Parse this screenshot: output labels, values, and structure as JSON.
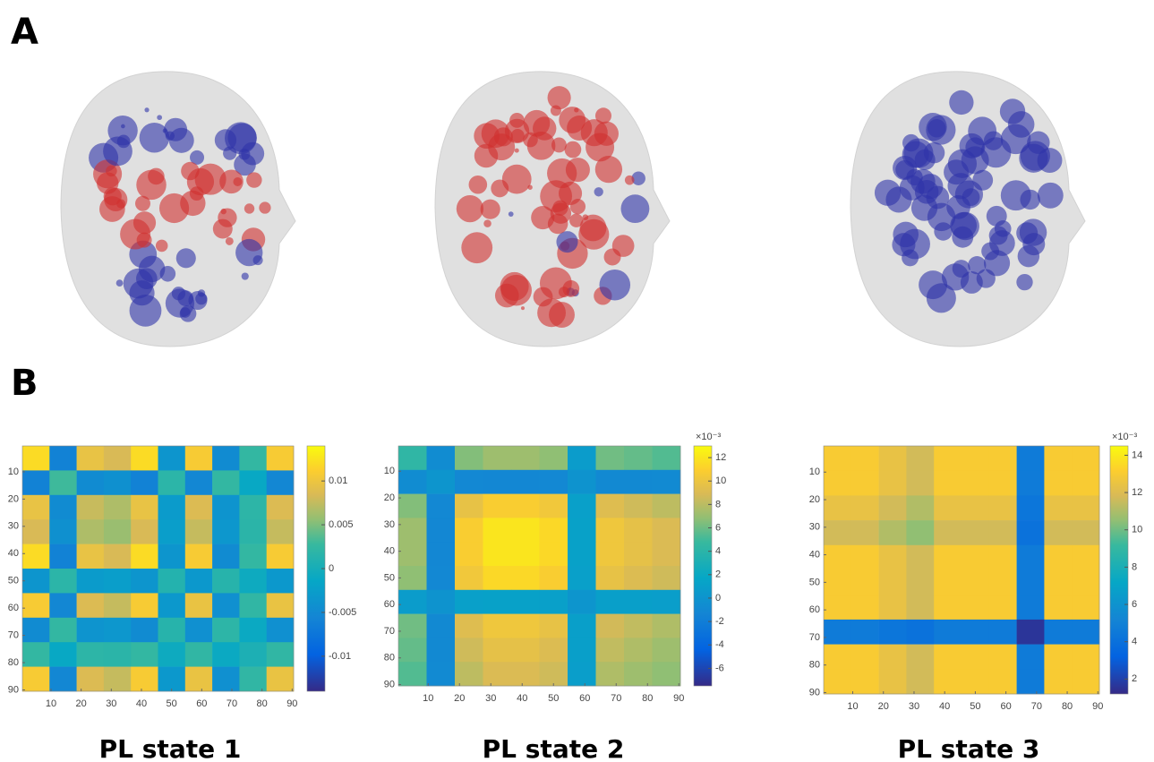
{
  "panel_labels": [
    "A",
    "B"
  ],
  "chart_data": [
    {
      "type": "heatmap",
      "title": "PL state 1",
      "xbins": [
        0.5,
        9.5,
        18.5,
        27.5,
        36.5,
        45.5,
        54.5,
        63.5,
        72.5,
        81.5,
        90.5
      ],
      "ybins": [
        0.5,
        9.5,
        18.5,
        27.5,
        36.5,
        45.5,
        54.5,
        63.5,
        72.5,
        81.5,
        90.5
      ],
      "z": [
        [
          0.012,
          -0.006,
          0.0096,
          0.0084,
          0.012,
          -0.0036,
          0.0108,
          -0.0048,
          0.0024,
          0.0108
        ],
        [
          -0.006,
          0.003,
          -0.0048,
          -0.0042,
          -0.006,
          0.0018,
          -0.0054,
          0.0024,
          -0.0012,
          -0.0054
        ],
        [
          0.0096,
          -0.0048,
          0.0077,
          0.0067,
          0.0096,
          -0.0029,
          0.0086,
          -0.0038,
          0.0019,
          0.0086
        ],
        [
          0.0084,
          -0.0042,
          0.0067,
          0.0059,
          0.0084,
          -0.0025,
          0.0076,
          -0.0034,
          0.0017,
          0.0076
        ],
        [
          0.012,
          -0.006,
          0.0096,
          0.0084,
          0.012,
          -0.0036,
          0.0108,
          -0.0048,
          0.0024,
          0.0108
        ],
        [
          -0.0036,
          0.0018,
          -0.0029,
          -0.0025,
          -0.0036,
          0.0011,
          -0.0032,
          0.0014,
          -0.0007,
          -0.0032
        ],
        [
          0.0108,
          -0.0054,
          0.0086,
          0.0076,
          0.0108,
          -0.0032,
          0.0097,
          -0.0043,
          0.0022,
          0.0097
        ],
        [
          -0.0048,
          0.0024,
          -0.0038,
          -0.0034,
          -0.0048,
          0.0014,
          -0.0043,
          0.0019,
          -0.001,
          -0.0043
        ],
        [
          0.0024,
          -0.0012,
          0.0019,
          0.0017,
          0.0024,
          -0.0007,
          0.0022,
          -0.001,
          0.0005,
          0.0022
        ],
        [
          0.0108,
          -0.0054,
          0.0086,
          0.0076,
          0.0108,
          -0.0032,
          0.0097,
          -0.0043,
          0.0022,
          0.0097
        ]
      ],
      "xlim": [
        0.5,
        90.5
      ],
      "ylim": [
        0.5,
        90.5
      ],
      "xticks": [
        10,
        20,
        30,
        40,
        50,
        60,
        70,
        80,
        90
      ],
      "yticks": [
        10,
        20,
        30,
        40,
        50,
        60,
        70,
        80,
        90
      ],
      "clim": [
        -0.014,
        0.014
      ],
      "cticks": [
        -0.01,
        -0.005,
        0,
        0.005,
        0.01
      ]
    },
    {
      "type": "heatmap",
      "title": "PL state 2",
      "xbins": [
        0.5,
        9.5,
        18.5,
        27.5,
        36.5,
        45.5,
        54.5,
        63.5,
        72.5,
        81.5,
        90.5
      ],
      "ybins": [
        0.5,
        9.5,
        18.5,
        27.5,
        36.5,
        45.5,
        54.5,
        63.5,
        72.5,
        81.5,
        90.5
      ],
      "z": [
        [
          4.3,
          -0.7,
          6.5,
          7.2,
          7.2,
          6.8,
          0.7,
          6.1,
          5.8,
          5.4
        ],
        [
          -0.7,
          0.1,
          -1.1,
          -1.2,
          -1.2,
          -1.1,
          -0.1,
          -1.0,
          -1.0,
          -0.9
        ],
        [
          6.5,
          -1.1,
          9.7,
          10.8,
          10.8,
          10.3,
          1.1,
          9.2,
          8.6,
          8.1
        ],
        [
          7.2,
          -1.2,
          10.8,
          12,
          12,
          11.4,
          1.2,
          10.2,
          9.6,
          9
        ],
        [
          7.2,
          -1.2,
          10.8,
          12,
          12,
          11.4,
          1.2,
          10.2,
          9.6,
          9
        ],
        [
          6.8,
          -1.1,
          10.3,
          11.4,
          11.4,
          10.8,
          1.1,
          9.7,
          9.1,
          8.6
        ],
        [
          0.7,
          -0.1,
          1.1,
          1.2,
          1.2,
          1.1,
          0.1,
          1.0,
          1.0,
          0.9
        ],
        [
          6.1,
          -1.0,
          9.2,
          10.2,
          10.2,
          9.7,
          1.0,
          8.7,
          8.2,
          7.7
        ],
        [
          5.8,
          -1.0,
          8.6,
          9.6,
          9.6,
          9.1,
          1.0,
          8.2,
          7.7,
          7.2
        ],
        [
          5.4,
          -0.9,
          8.1,
          9,
          9,
          8.6,
          0.9,
          7.7,
          7.2,
          6.8
        ]
      ],
      "xlim": [
        0.5,
        90.5
      ],
      "ylim": [
        0.5,
        90.5
      ],
      "xticks": [
        10,
        20,
        30,
        40,
        50,
        60,
        70,
        80,
        90
      ],
      "yticks": [
        10,
        20,
        30,
        40,
        50,
        60,
        70,
        80,
        90
      ],
      "clim": [
        -7.5,
        13
      ],
      "cticks": [
        -6,
        -4,
        -2,
        0,
        2,
        4,
        6,
        8,
        10,
        12
      ],
      "colorbar_scale": "×10⁻³"
    },
    {
      "type": "heatmap",
      "title": "PL state 3",
      "xbins": [
        0.5,
        9.5,
        18.5,
        27.5,
        36.5,
        45.5,
        54.5,
        63.5,
        72.5,
        81.5,
        90.5
      ],
      "ybins": [
        0.5,
        9.5,
        18.5,
        27.5,
        36.5,
        45.5,
        54.5,
        63.5,
        72.5,
        81.5,
        90.5
      ],
      "z": [
        [
          13,
          13,
          12.4,
          11.7,
          13,
          13,
          13,
          4.6,
          13,
          13
        ],
        [
          13,
          13,
          12.4,
          11.7,
          13,
          13,
          13,
          4.6,
          13,
          13
        ],
        [
          12.4,
          12.4,
          11.7,
          11.1,
          12.4,
          12.4,
          12.4,
          4.3,
          12.4,
          12.4
        ],
        [
          11.7,
          11.7,
          11.1,
          10.5,
          11.7,
          11.7,
          11.7,
          4.1,
          11.7,
          11.7
        ],
        [
          13,
          13,
          12.4,
          11.7,
          13,
          13,
          13,
          4.6,
          13,
          13
        ],
        [
          13,
          13,
          12.4,
          11.7,
          13,
          13,
          13,
          4.6,
          13,
          13
        ],
        [
          13,
          13,
          12.4,
          11.7,
          13,
          13,
          13,
          4.6,
          13,
          13
        ],
        [
          4.6,
          4.6,
          4.3,
          4.1,
          4.6,
          4.6,
          4.6,
          1.6,
          4.6,
          4.6
        ],
        [
          13,
          13,
          12.4,
          11.7,
          13,
          13,
          13,
          4.6,
          13,
          13
        ],
        [
          13,
          13,
          12.4,
          11.7,
          13,
          13,
          13,
          4.6,
          13,
          13
        ]
      ],
      "xlim": [
        0.5,
        90.5
      ],
      "ylim": [
        0.5,
        90.5
      ],
      "xticks": [
        10,
        20,
        30,
        40,
        50,
        60,
        70,
        80,
        90
      ],
      "yticks": [
        10,
        20,
        30,
        40,
        50,
        60,
        70,
        80,
        90
      ],
      "clim": [
        1.2,
        14.5
      ],
      "cticks": [
        2,
        4,
        6,
        8,
        10,
        12,
        14
      ],
      "colorbar_scale": "×10⁻³"
    }
  ]
}
